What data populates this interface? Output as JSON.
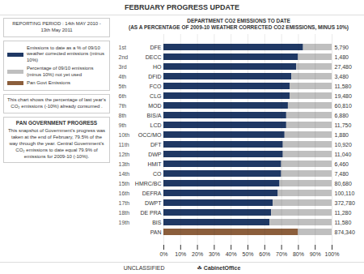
{
  "chart_data": {
    "type": "bar",
    "orientation": "horizontal",
    "stacked": true,
    "title": "FEBRUARY PROGRESS UPDATE",
    "subtitle": "DEPARTMENT CO2 EMISSIONS TO DATE\n(AS A PERCENTAGE OF 2009-10 WEATHER CORRECTED CO2 EMISSIONS, MINUS 10%)",
    "categories": [
      "DFE",
      "DECC",
      "HO",
      "DFID",
      "FCO",
      "CLG",
      "MOD",
      "BIS/A",
      "LCD",
      "OCC/MO",
      "DFT",
      "DWP",
      "HMIT",
      "CO",
      "HMRC/BC",
      "DEFRA",
      "DWPT",
      "DE PRA",
      "BIS",
      "PAN"
    ],
    "series": [
      {
        "name": "Emissions to date as a % of 09/10 weather corrected emissions (minus 10%)",
        "color": "#1F3864",
        "values": [
          83,
          80,
          79,
          76,
          75,
          75,
          74,
          73,
          73,
          72,
          71,
          71,
          70,
          70,
          69,
          68,
          65,
          64,
          63,
          null
        ]
      },
      {
        "name": "Percentage of 09/10 emissions (minus 10%) not yet used",
        "color": "#BFBFBF",
        "values": [
          17,
          20,
          21,
          24,
          25,
          25,
          26,
          27,
          27,
          28,
          29,
          29,
          30,
          30,
          31,
          32,
          35,
          36,
          37,
          20
        ]
      },
      {
        "name": "Pan Govt Emissions",
        "color": "#8B5E3C",
        "values": [
          null,
          null,
          null,
          null,
          null,
          null,
          null,
          null,
          null,
          null,
          null,
          null,
          null,
          null,
          null,
          null,
          null,
          null,
          null,
          80
        ]
      }
    ],
    "ranks": [
      "1st",
      "2nd",
      "3rd",
      "4th",
      "5th",
      "6th",
      "7th",
      "8th",
      "9th",
      "10th",
      "11th",
      "12th",
      "13th",
      "14th",
      "15th",
      "16th",
      "17th",
      "18th",
      "19th",
      null
    ],
    "emissions": [
      "5,790",
      "1,480",
      "27,480",
      "3,480",
      "11,580",
      "19,480",
      "60,810",
      "6,880",
      "11,750",
      "1,880",
      "10,920",
      "11,040",
      "6,460",
      "7,480",
      "80,680",
      "100,110",
      "372,780",
      "11,280",
      "11,580",
      "874,340"
    ],
    "xlim": [
      0,
      100
    ],
    "xticks": [
      {
        "value": 0,
        "label": "0%"
      },
      {
        "value": 10,
        "label": "10%"
      },
      {
        "value": 20,
        "label": "20%"
      },
      {
        "value": 30,
        "label": "30%"
      },
      {
        "value": 40,
        "label": "40%"
      },
      {
        "value": 50,
        "label": "50%"
      },
      {
        "value": 60,
        "label": "60%"
      },
      {
        "value": 70,
        "label": "70%"
      },
      {
        "value": 80,
        "label": "80%"
      },
      {
        "value": 90,
        "label": "90%"
      },
      {
        "value": 100,
        "label": "100%"
      }
    ],
    "grid": true,
    "legend": "left",
    "annotations": [
      "REPORTING PERIOD : 14th MAY 2010 - 13th May 2011",
      "This chart shows the percentage of last year's CO₂ emissions (-10%) already consumed .",
      "PAN GOVERNMENT PROGRESS",
      "This snapshot of Government's progress was taken at the end of February, 79.5% of the way through the year. Central Government's CO₂ emissions to date equal 79.9% of emissions for 2009-10 (-10%).",
      "UNCLASSIFIED",
      "☘ CabinetOffice"
    ]
  }
}
